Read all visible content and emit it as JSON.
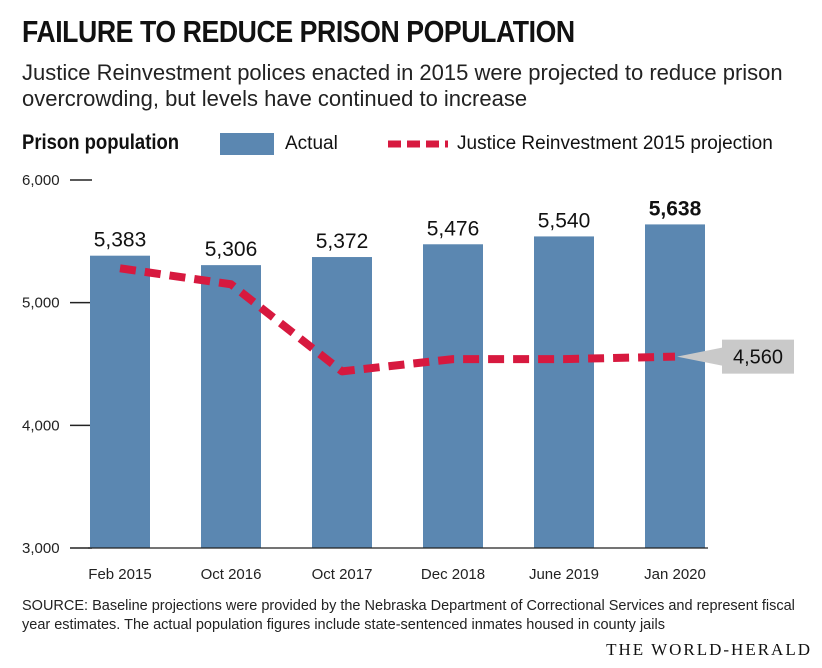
{
  "title": "FAILURE TO REDUCE PRISON POPULATION",
  "subtitle": "Justice Reinvestment polices enacted in 2015 were projected to reduce prison overcrowding, but levels have continued to increase",
  "legend": {
    "label": "Prison population",
    "actual": "Actual",
    "projection": "Justice Reinvestment 2015 projection"
  },
  "colors": {
    "bar": "#5b87b1",
    "projection": "#d7193f",
    "callout_bg": "#c9c9c9"
  },
  "chart_data": {
    "type": "bar",
    "title": "FAILURE TO REDUCE PRISON POPULATION",
    "ylabel": "Prison population",
    "xlabel": "",
    "ylim": [
      3000,
      6000
    ],
    "yticks": [
      3000,
      4000,
      5000,
      6000
    ],
    "ytick_labels": [
      "3,000",
      "4,000",
      "5,000",
      "6,000"
    ],
    "categories": [
      "Feb 2015",
      "Oct 2016",
      "Oct 2017",
      "Dec 2018",
      "June 2019",
      "Jan 2020"
    ],
    "series": [
      {
        "name": "Actual",
        "kind": "bar",
        "values": [
          5383,
          5306,
          5372,
          5476,
          5540,
          5638
        ],
        "labels": [
          "5,383",
          "5,306",
          "5,372",
          "5,476",
          "5,540",
          "5,638"
        ]
      },
      {
        "name": "Justice Reinvestment 2015 projection",
        "kind": "line",
        "style": "dashed",
        "values": [
          5280,
          5150,
          4440,
          4540,
          4540,
          4560
        ]
      }
    ],
    "callout": {
      "series": "Justice Reinvestment 2015 projection",
      "value": 4560,
      "label": "4,560"
    },
    "highlight_last_label": true
  },
  "source": "SOURCE: Baseline projections were provided by the Nebraska Department of Correctional Services and represent fiscal year estimates. The actual population figures include state-sentenced inmates housed in county jails",
  "brand": "THE WORLD-HERALD"
}
